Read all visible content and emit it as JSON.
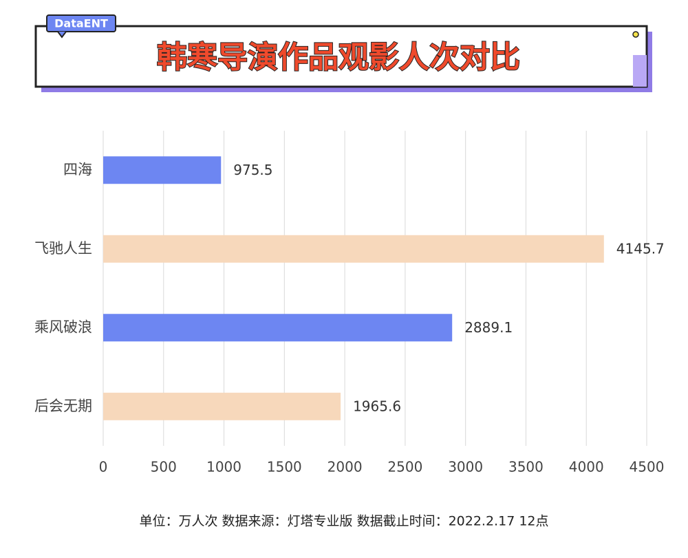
{
  "chart_data": {
    "type": "bar",
    "orientation": "horizontal",
    "badge": "DataENT",
    "title": "韩寒导演作品观影人次对比",
    "categories": [
      "四海",
      "飞驰人生",
      "乘风破浪",
      "后会无期"
    ],
    "values": [
      975.5,
      4145.7,
      2889.1,
      1965.6
    ],
    "colors": [
      "#6d86f2",
      "#f7d8bb",
      "#6d86f2",
      "#f7d8bb"
    ],
    "xlim": [
      0,
      4500
    ],
    "xticks": [
      0,
      500,
      1000,
      1500,
      2000,
      2500,
      3000,
      3500,
      4000,
      4500
    ],
    "grid": true,
    "footnote": "单位：万人次  数据来源：灯塔专业版  数据截止时间：2022.2.17 12点"
  }
}
